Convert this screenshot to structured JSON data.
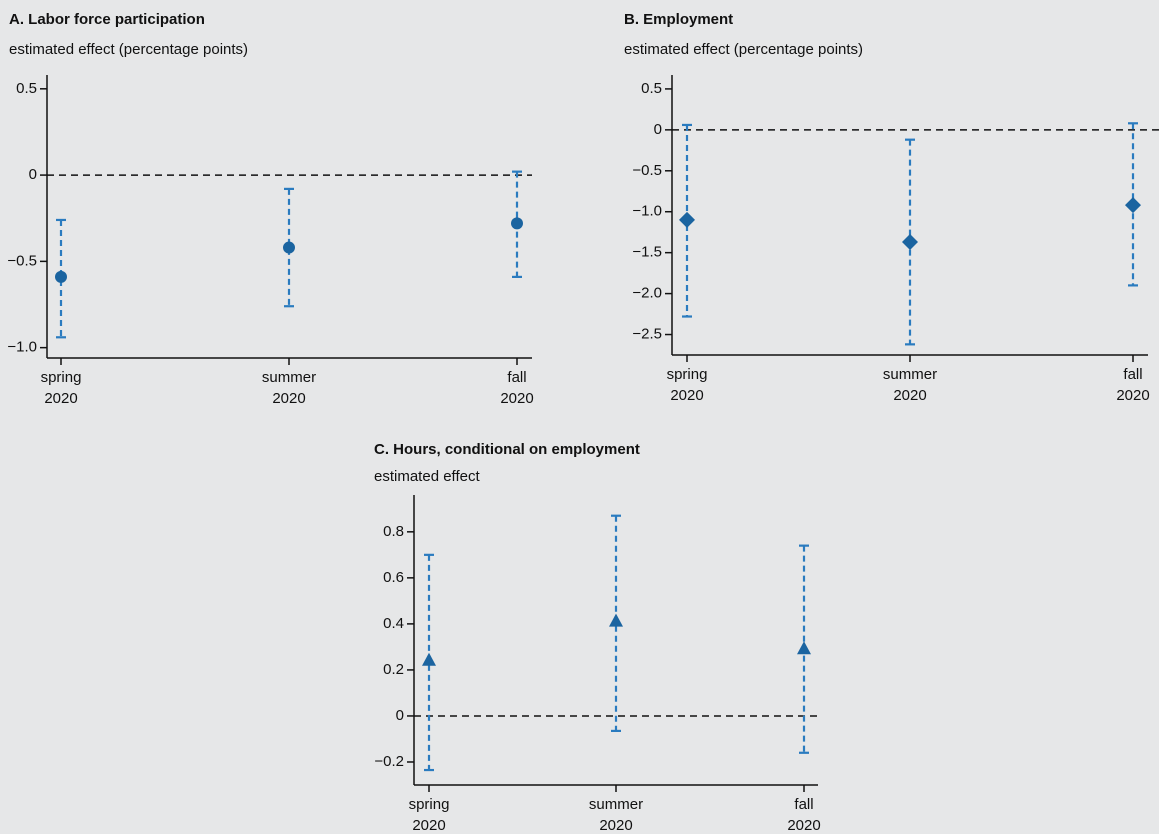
{
  "chart_data": [
    {
      "type": "errorbar",
      "title": "A. Labor force participation",
      "subtitle": "estimated effect (percentage points)",
      "categories": [
        "spring\n2020",
        "summer\n2020",
        "fall\n2020"
      ],
      "values": [
        -0.59,
        -0.42,
        -0.28
      ],
      "lower": [
        -0.94,
        -0.76,
        -0.59
      ],
      "upper": [
        -0.26,
        -0.08,
        0.02
      ],
      "marker": "circle",
      "color": "#1b64a0",
      "error_color": "#2a7bbf",
      "ylim": [
        -1.06,
        0.58
      ],
      "yticks": [
        0.5,
        0,
        {
          "value": -0.5,
          "label": "−0.5"
        },
        {
          "value": -1.0,
          "label": "−1.0"
        }
      ],
      "refline": 0
    },
    {
      "type": "errorbar",
      "title": "B. Employment",
      "subtitle": "estimated effect (percentage points)",
      "categories": [
        "spring\n2020",
        "summer\n2020",
        "fall\n2020"
      ],
      "values": [
        -1.1,
        -1.37,
        -0.92
      ],
      "lower": [
        -2.28,
        -2.62,
        -1.9
      ],
      "upper": [
        0.06,
        -0.12,
        0.08
      ],
      "marker": "diamond",
      "color": "#1b64a0",
      "error_color": "#2a7bbf",
      "ylim": [
        -2.75,
        0.67
      ],
      "yticks": [
        0.5,
        0,
        {
          "value": -0.5,
          "label": "−0.5"
        },
        {
          "value": -1.0,
          "label": "−1.0"
        },
        {
          "value": -1.5,
          "label": "−1.5"
        },
        {
          "value": -2.0,
          "label": "−2.0"
        },
        {
          "value": -2.5,
          "label": "−2.5"
        }
      ],
      "refline": 0
    },
    {
      "type": "errorbar",
      "title": "C. Hours, conditional on employment",
      "subtitle": "estimated effect",
      "categories": [
        "spring\n2020",
        "summer\n2020",
        "fall\n2020"
      ],
      "values": [
        0.24,
        0.41,
        0.29
      ],
      "lower": [
        -0.235,
        -0.065,
        -0.16
      ],
      "upper": [
        0.7,
        0.87,
        0.74
      ],
      "marker": "triangle",
      "color": "#1b64a0",
      "error_color": "#2a7bbf",
      "ylim": [
        -0.3,
        0.96
      ],
      "yticks": [
        0.8,
        0.6,
        0.4,
        0.2,
        0,
        {
          "value": -0.2,
          "label": "−0.2"
        }
      ],
      "refline": 0
    }
  ]
}
